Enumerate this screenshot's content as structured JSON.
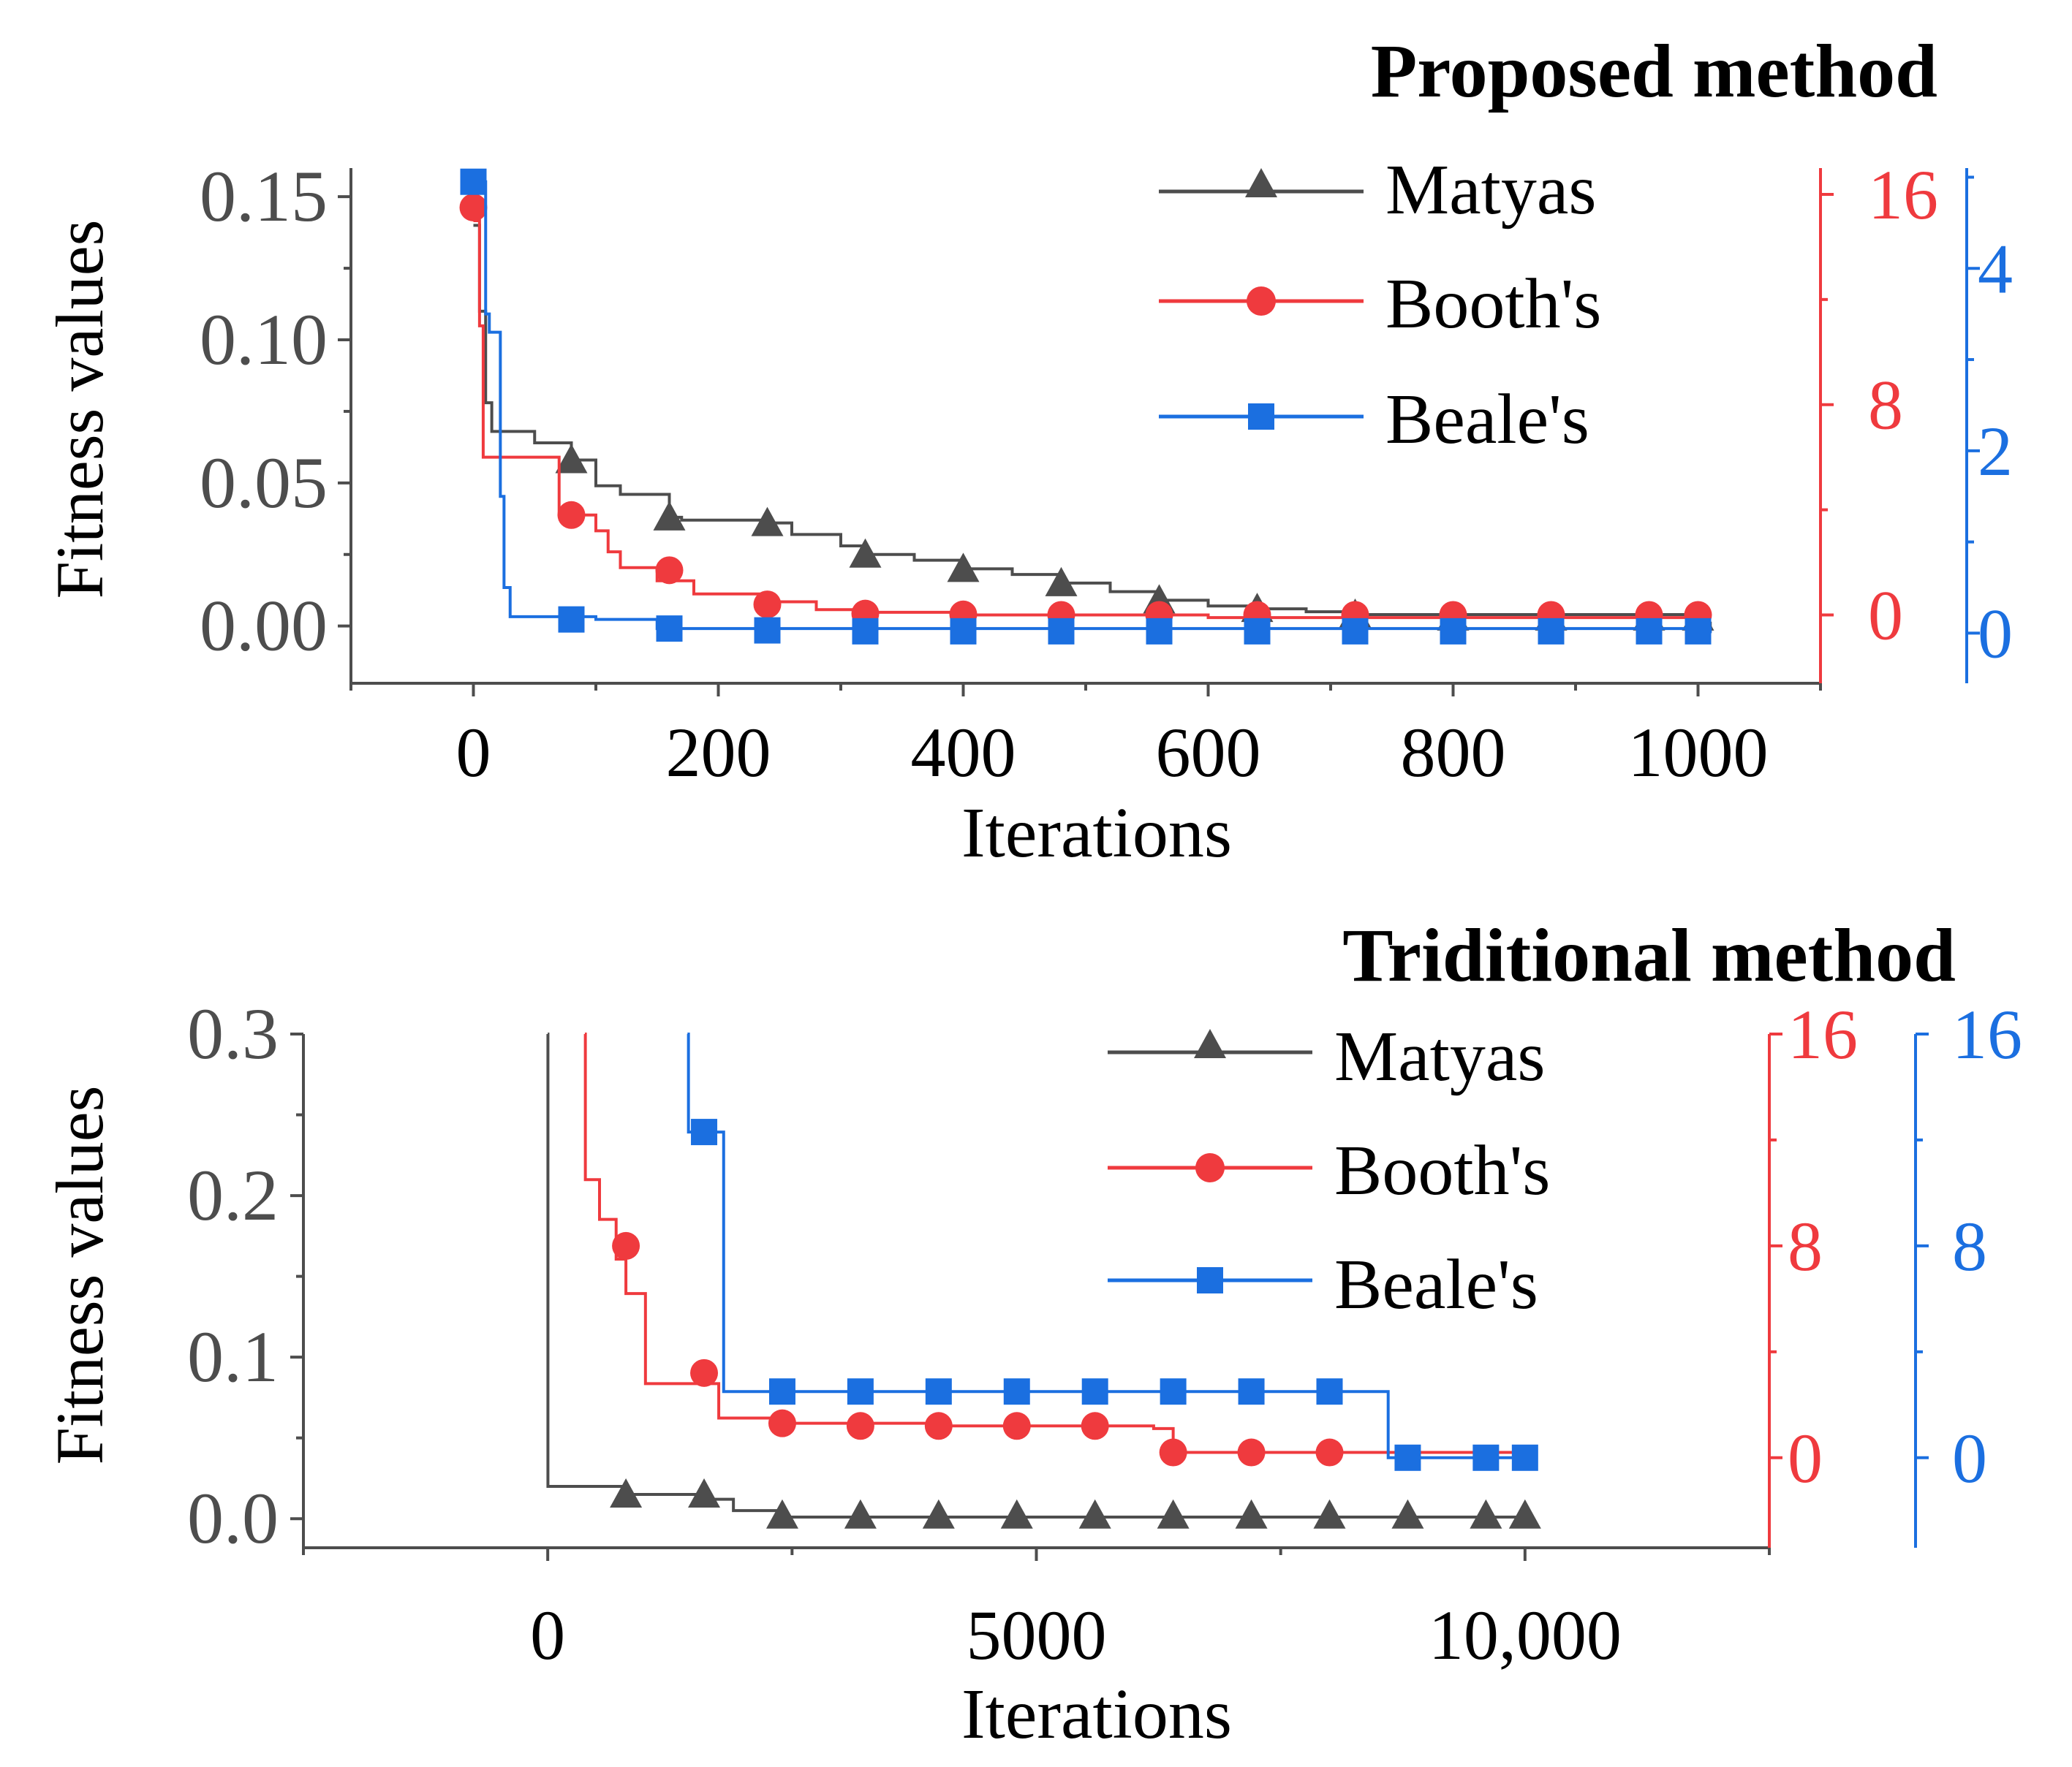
{
  "colors": {
    "matyas": "#4d4d4d",
    "booth": "#ef3a3e",
    "beale": "#1b6fe0",
    "axis": "#4d4d4d",
    "text": "#000000"
  },
  "chart_data": [
    {
      "type": "line",
      "title": "Proposed method",
      "xlabel": "Iterations",
      "ylabel": "Fitness values",
      "xlim": [
        -100,
        1100
      ],
      "x_ticks": [
        0,
        200,
        400,
        600,
        800,
        1000
      ],
      "x_tick_labels": [
        "0",
        "200",
        "400",
        "600",
        "800",
        "1000"
      ],
      "axes": {
        "left": {
          "ylim": [
            -0.02,
            0.16
          ],
          "ticks": [
            0.0,
            0.05,
            0.1,
            0.15
          ],
          "tick_labels": [
            "0.00",
            "0.05",
            "0.10",
            "0.15"
          ],
          "color_key": "axis"
        },
        "right1": {
          "ylim": [
            -2.6,
            17.0
          ],
          "ticks": [
            0,
            8,
            16
          ],
          "tick_labels": [
            "0",
            "8",
            "16"
          ],
          "color_key": "booth"
        },
        "right2": {
          "ylim": [
            -0.55,
            5.1
          ],
          "ticks": [
            0,
            2,
            4
          ],
          "tick_labels": [
            "0",
            "2",
            "4"
          ],
          "color_key": "beale"
        }
      },
      "legend": {
        "position": "top-right"
      },
      "series": [
        {
          "name": "Matyas",
          "axis": "left",
          "color_key": "matyas",
          "marker": "triangle",
          "x": [
            0,
            5,
            10,
            15,
            50,
            80,
            100,
            120,
            160,
            170,
            240,
            260,
            300,
            320,
            360,
            400,
            440,
            480,
            520,
            560,
            600,
            640,
            680,
            720,
            1000,
            1010
          ],
          "y": [
            0.14,
            0.11,
            0.078,
            0.068,
            0.064,
            0.058,
            0.049,
            0.046,
            0.038,
            0.037,
            0.036,
            0.032,
            0.028,
            0.025,
            0.023,
            0.02,
            0.018,
            0.015,
            0.012,
            0.009,
            0.007,
            0.006,
            0.005,
            0.004,
            0.001,
            -0.002
          ],
          "markers_x": [
            80,
            160,
            240,
            320,
            400,
            480,
            560,
            640,
            720,
            800,
            880,
            960,
            1000
          ],
          "markers_y": [
            0.058,
            0.038,
            0.036,
            0.025,
            0.02,
            0.015,
            0.009,
            0.006,
            0.004,
            0.003,
            0.003,
            0.003,
            0.003
          ]
        },
        {
          "name": "Booth's",
          "axis": "right1",
          "color_key": "booth",
          "marker": "circle",
          "x": [
            0,
            5,
            8,
            60,
            70,
            100,
            110,
            120,
            150,
            180,
            240,
            280,
            320,
            400,
            600,
            1010
          ],
          "y": [
            15.0,
            11.0,
            6.0,
            6.0,
            3.8,
            3.2,
            2.4,
            1.8,
            1.3,
            0.8,
            0.5,
            0.2,
            0.1,
            0.0,
            -0.1,
            -0.1
          ],
          "markers_x": [
            0,
            80,
            160,
            240,
            320,
            400,
            480,
            560,
            640,
            720,
            800,
            880,
            960,
            1000
          ],
          "markers_y": [
            15.5,
            3.8,
            1.7,
            0.4,
            0.05,
            0.02,
            0.0,
            0.0,
            0.0,
            0.0,
            0.0,
            0.0,
            0.0,
            0.0
          ]
        },
        {
          "name": "Beale's",
          "axis": "right2",
          "color_key": "beale",
          "marker": "square",
          "x": [
            0,
            10,
            13,
            20,
            22,
            25,
            30,
            100,
            150,
            1010
          ],
          "y": [
            4.95,
            3.5,
            3.3,
            3.3,
            1.5,
            0.5,
            0.18,
            0.15,
            0.05,
            0.0
          ],
          "markers_x": [
            0,
            80,
            160,
            240,
            320,
            400,
            480,
            560,
            640,
            720,
            800,
            880,
            960,
            1000
          ],
          "markers_y": [
            4.95,
            0.15,
            0.05,
            0.03,
            0.02,
            0.02,
            0.02,
            0.02,
            0.02,
            0.02,
            0.02,
            0.02,
            0.02,
            0.02
          ]
        }
      ]
    },
    {
      "type": "line",
      "title": "Triditional method",
      "xlabel": "Iterations",
      "ylabel": "Fitness values",
      "xlim": [
        -2500,
        12500
      ],
      "x_ticks": [
        0,
        5000,
        10000
      ],
      "x_tick_labels": [
        "0",
        "5000",
        "10,000"
      ],
      "axes": {
        "left": {
          "ylim": [
            -0.018,
            0.3
          ],
          "ticks": [
            0.0,
            0.1,
            0.2,
            0.3
          ],
          "tick_labels": [
            "0.0",
            "0.1",
            "0.2",
            "0.3"
          ],
          "color_key": "axis"
        },
        "right1": {
          "ylim": [
            -3.4,
            16.0
          ],
          "ticks": [
            0,
            8,
            16
          ],
          "tick_labels": [
            "0",
            "8",
            "16"
          ],
          "color_key": "booth"
        },
        "right2": {
          "ylim": [
            -3.4,
            16.0
          ],
          "ticks": [
            0,
            8,
            16
          ],
          "tick_labels": [
            "0",
            "8",
            "16"
          ],
          "color_key": "beale"
        }
      },
      "legend": {
        "position": "top-right"
      },
      "series": [
        {
          "name": "Matyas",
          "axis": "left",
          "color_key": "matyas",
          "marker": "triangle",
          "x": [
            0,
            2,
            800,
            1600,
            1900,
            2400,
            10000
          ],
          "y": [
            0.3,
            0.02,
            0.015,
            0.012,
            0.005,
            0.001,
            0.001
          ],
          "markers_x": [
            800,
            1600,
            2400,
            3200,
            4000,
            4800,
            5600,
            6400,
            7200,
            8000,
            8800,
            9600,
            10000
          ],
          "markers_y": [
            0.015,
            0.015,
            0.002,
            0.002,
            0.002,
            0.002,
            0.002,
            0.002,
            0.002,
            0.002,
            0.002,
            0.002,
            0.002
          ]
        },
        {
          "name": "Booth's",
          "axis": "right1",
          "color_key": "booth",
          "marker": "circle",
          "x": [
            380,
            385,
            530,
            700,
            800,
            1000,
            1750,
            1750,
            2400,
            4000,
            6200,
            6400,
            8600,
            10000
          ],
          "y": [
            16.0,
            10.5,
            9.0,
            7.5,
            6.2,
            2.8,
            2.8,
            1.5,
            1.3,
            1.2,
            1.1,
            0.2,
            0.2,
            0.2
          ],
          "markers_x": [
            800,
            1600,
            2400,
            3200,
            4000,
            4800,
            5600,
            6400,
            7200,
            8000
          ],
          "markers_y": [
            8.0,
            3.2,
            1.3,
            1.2,
            1.2,
            1.2,
            1.2,
            0.2,
            0.2,
            0.2
          ]
        },
        {
          "name": "Beale's",
          "axis": "right2",
          "color_key": "beale",
          "marker": "square",
          "x": [
            1430,
            1440,
            1800,
            1800,
            8600,
            8600,
            10000
          ],
          "y": [
            16.0,
            12.3,
            12.3,
            2.5,
            2.5,
            0.0,
            0.0
          ],
          "markers_x": [
            1600,
            2400,
            3200,
            4000,
            4800,
            5600,
            6400,
            7200,
            8000,
            8800,
            9600,
            10000
          ],
          "markers_y": [
            12.3,
            2.5,
            2.5,
            2.5,
            2.5,
            2.5,
            2.5,
            2.5,
            2.5,
            0.0,
            0.0,
            0.0
          ]
        }
      ]
    }
  ]
}
